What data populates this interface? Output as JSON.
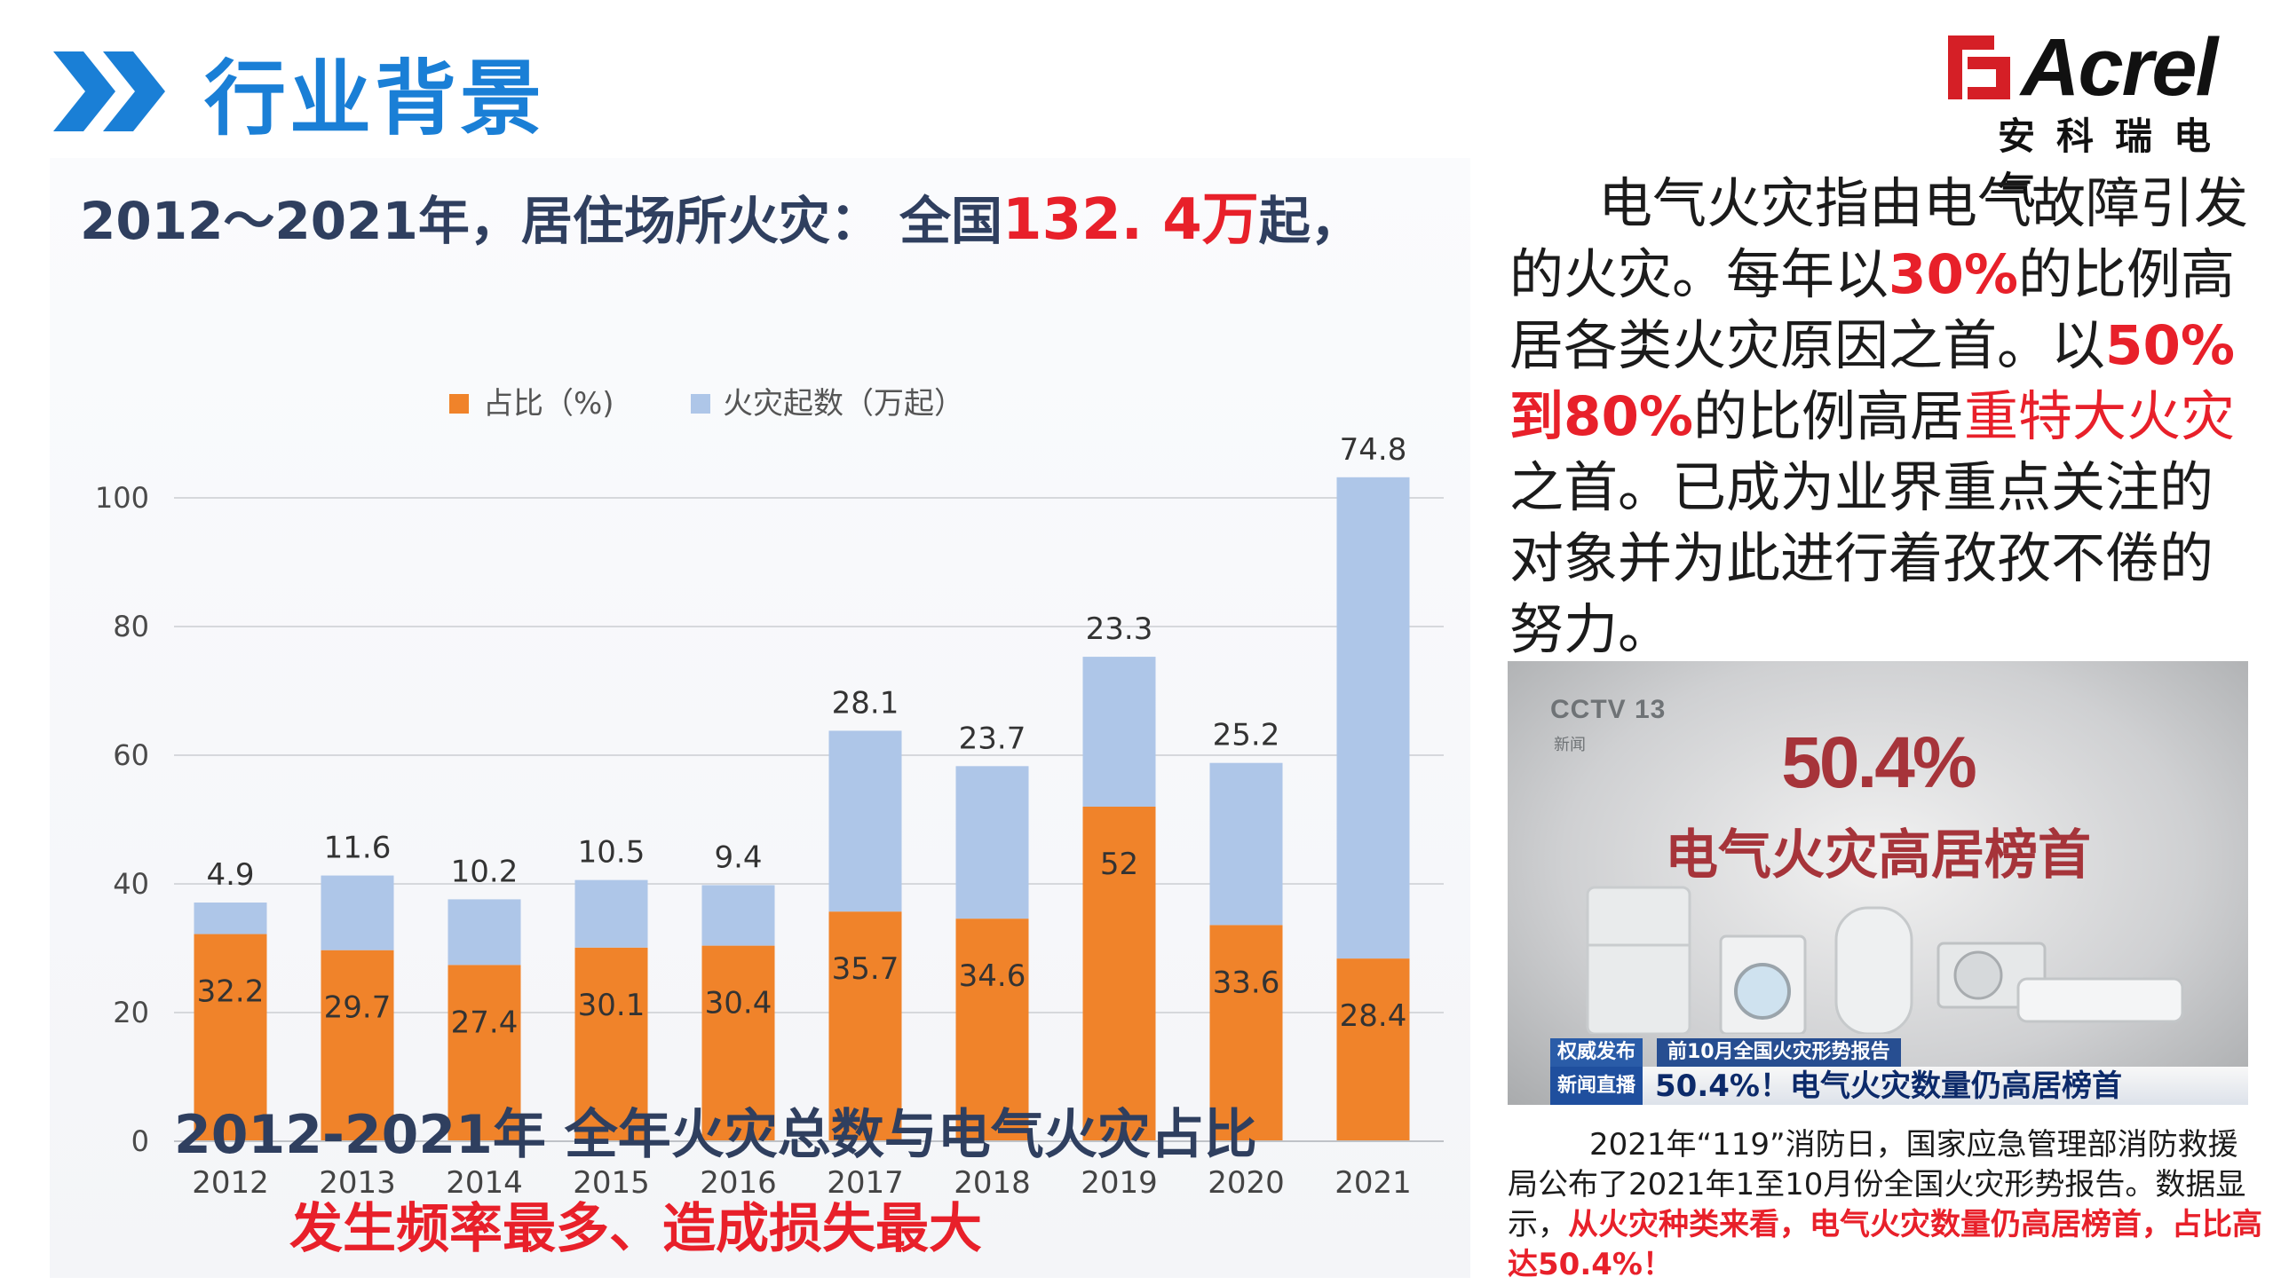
{
  "header": {
    "title": "行业背景"
  },
  "logo": {
    "brand": "Acrel",
    "subtitle": "安科瑞电气"
  },
  "chart_headline": {
    "prefix": "2012～2021年，居住场所火灾：  全国",
    "value": "132. 4万",
    "suffix": "起，"
  },
  "chart_data": {
    "type": "bar",
    "stacked": true,
    "categories": [
      "2012",
      "2013",
      "2014",
      "2015",
      "2016",
      "2017",
      "2018",
      "2019",
      "2020",
      "2021"
    ],
    "series": [
      {
        "name": "占比（%)",
        "color": "#f0832a",
        "values": [
          32.2,
          29.7,
          27.4,
          30.1,
          30.4,
          35.7,
          34.6,
          52,
          33.6,
          28.4
        ]
      },
      {
        "name": "火灾起数（万起）",
        "color": "#aec6e8",
        "values": [
          4.9,
          11.6,
          10.2,
          10.5,
          9.4,
          28.1,
          23.7,
          23.3,
          25.2,
          74.8
        ]
      }
    ],
    "yticks": [
      0,
      20,
      40,
      60,
      80,
      100
    ],
    "ylim": [
      0,
      110
    ],
    "legend": "top",
    "grid": true,
    "caption": "2012-2021年  全年火灾总数与电气火灾占比",
    "tagline": "发生频率最多、造成损失最大"
  },
  "description": {
    "p1": "电气火灾指由电气故障引发的火灾。每年以",
    "r1": "30%",
    "p2": "的比例高居各类火灾原因之首。以",
    "r2": "50%到80%",
    "p3": "的比例高居",
    "r3": "重特大火灾",
    "p4": "之首。已成为业界重点关注的对象并为此进行着孜孜不倦的努力。"
  },
  "news_image": {
    "channel": "CCTV 13",
    "channel_sub": "新闻",
    "percent": "50.4%",
    "headline": "电气火灾高居榜首",
    "tag": "权威发布",
    "topic": "前10月全国火灾形势报告",
    "brand": "新闻直播间",
    "ticker": "50.4%！电气火灾数量仍高居榜首"
  },
  "note": {
    "text": "2021年“119”消防日，国家应急管理部消防救援局公布了2021年1至10月份全国火灾形势报告。数据显示，",
    "highlight": "从火灾种类来看，电气火灾数量仍高居榜首，占比高达50.4%！"
  }
}
